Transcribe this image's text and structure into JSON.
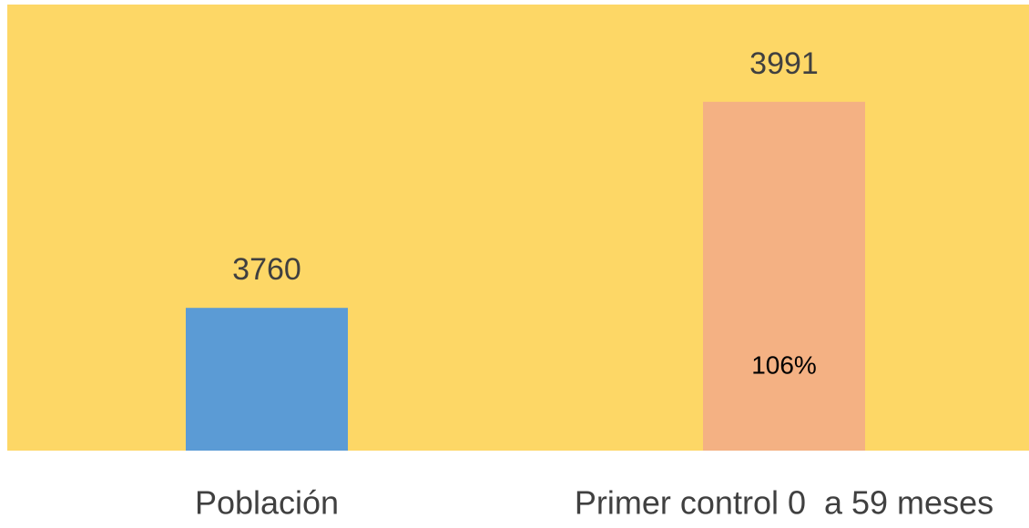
{
  "chart_data": {
    "type": "bar",
    "categories": [
      "Población",
      "Primer control 0  a 59 meses"
    ],
    "values": [
      3760,
      3991
    ],
    "colors": [
      "#5b9bd5",
      "#f4b183"
    ],
    "background": "#fdd766",
    "ylim": [
      3600,
      4100
    ],
    "annotations": [
      {
        "text": "106%",
        "category": 1
      }
    ]
  }
}
